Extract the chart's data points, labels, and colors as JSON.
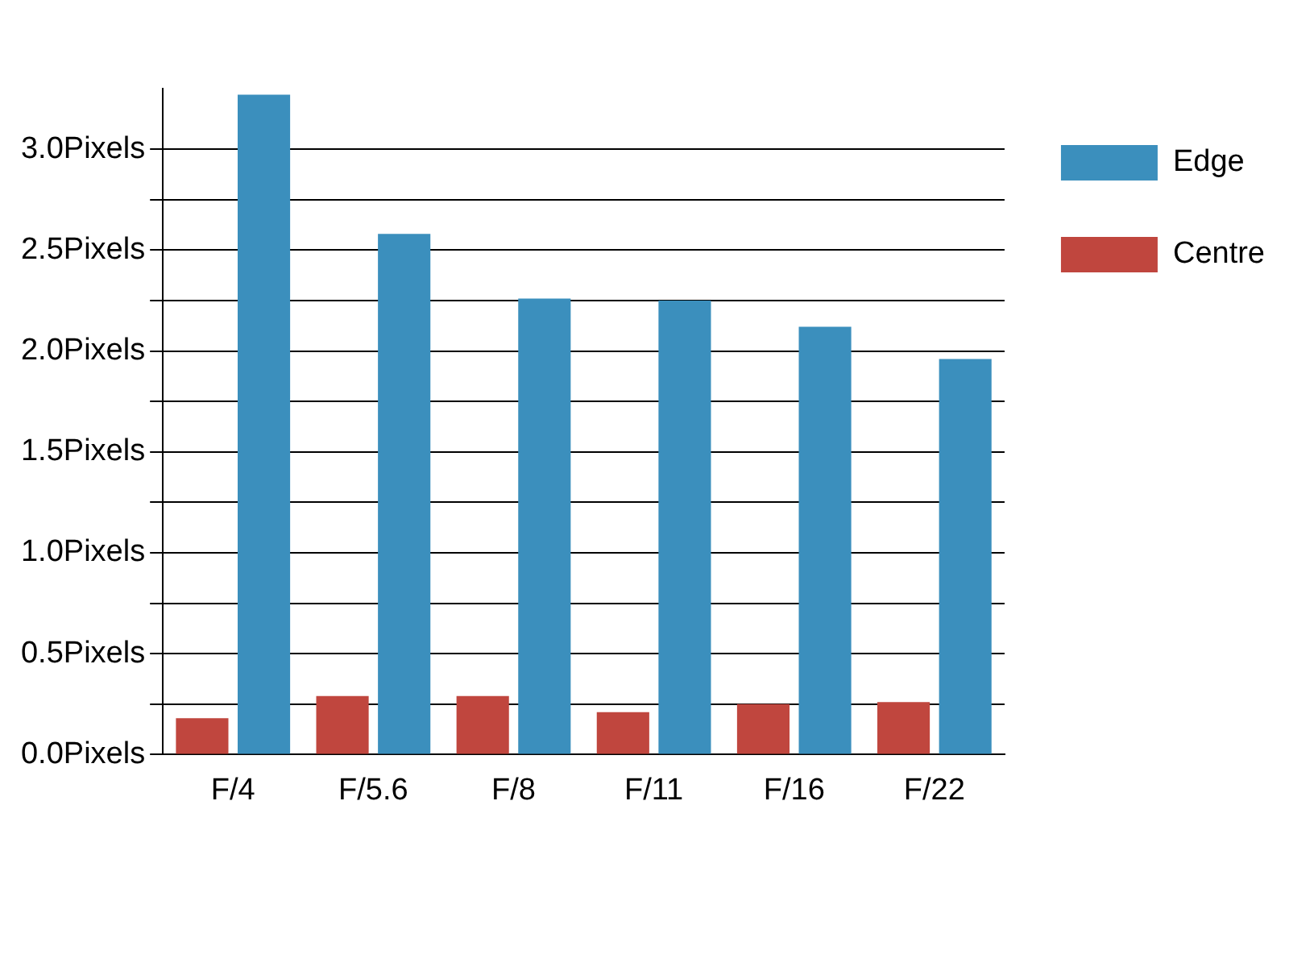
{
  "chart_data": {
    "type": "bar",
    "categories": [
      "F/4",
      "F/5.6",
      "F/8",
      "F/11",
      "F/16",
      "F/22"
    ],
    "series": [
      {
        "name": "Centre",
        "color": "#c0463e",
        "values": [
          0.18,
          0.29,
          0.29,
          0.21,
          0.25,
          0.26
        ]
      },
      {
        "name": "Edge",
        "color": "#3b8fbd",
        "values": [
          3.27,
          2.58,
          2.26,
          2.25,
          2.12,
          1.96
        ]
      }
    ],
    "ylim": [
      0,
      3.3
    ],
    "yticks": [
      {
        "value": 0,
        "label": "0.0Pixels"
      },
      {
        "value": 0.25,
        "label": null
      },
      {
        "value": 0.5,
        "label": "0.5Pixels"
      },
      {
        "value": 0.75,
        "label": null
      },
      {
        "value": 1,
        "label": "1.0Pixels"
      },
      {
        "value": 1.25,
        "label": null
      },
      {
        "value": 1.5,
        "label": "1.5Pixels"
      },
      {
        "value": 1.75,
        "label": null
      },
      {
        "value": 2,
        "label": "2.0Pixels"
      },
      {
        "value": 2.25,
        "label": null
      },
      {
        "value": 2.5,
        "label": "2.5Pixels"
      },
      {
        "value": 2.75,
        "label": null
      },
      {
        "value": 3,
        "label": "3.0Pixels"
      }
    ],
    "grid": "y",
    "legend": "top right"
  }
}
